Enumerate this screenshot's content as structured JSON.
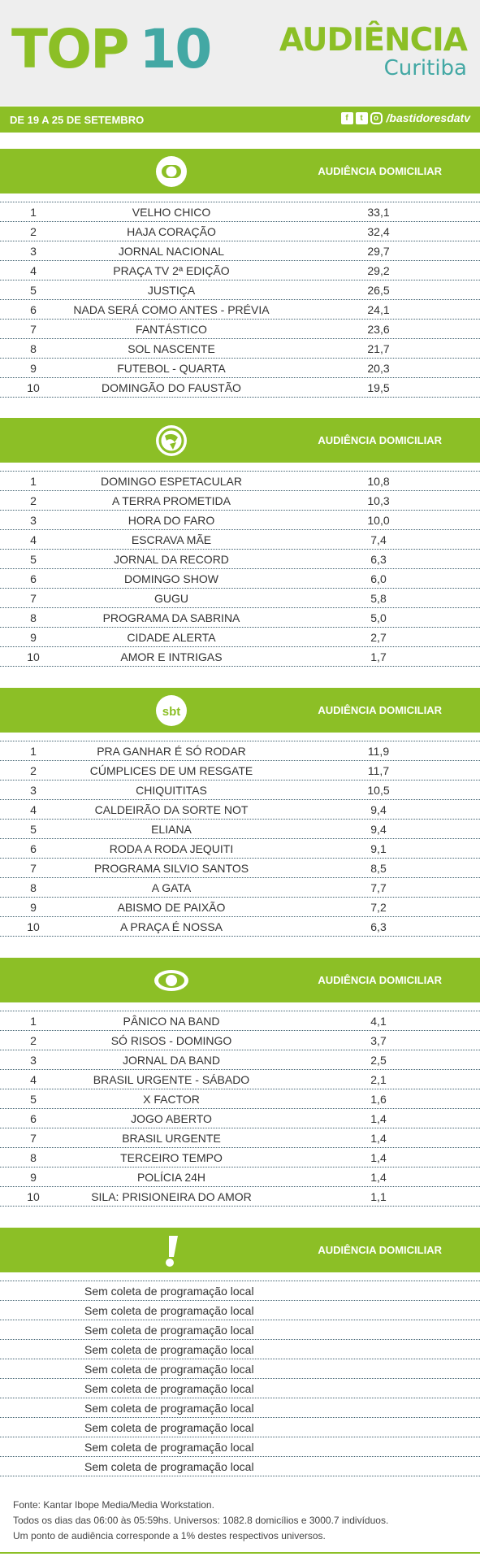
{
  "header": {
    "top": "TOP",
    "ten": "10",
    "audiencia": "AUDIÊNCIA",
    "city": "Curitiba"
  },
  "date_bar": {
    "period": "DE 19 A 25 DE SETEMBRO",
    "facebook": "f",
    "twitter": "t",
    "instagram": "o",
    "handle": "/bastidoresdatv"
  },
  "colors": {
    "accent_green": "#8cbf26",
    "accent_teal": "#43a8a4",
    "header_bg": "#eeeeee"
  },
  "sections": [
    {
      "icon": "globo-icon",
      "column_label": "AUDIÊNCIA DOMICILIAR",
      "rows": [
        {
          "rank": "1",
          "program": "VELHO CHICO",
          "value": "33,1"
        },
        {
          "rank": "2",
          "program": "HAJA CORAÇÃO",
          "value": "32,4"
        },
        {
          "rank": "3",
          "program": "JORNAL NACIONAL",
          "value": "29,7"
        },
        {
          "rank": "4",
          "program": "PRAÇA TV 2ª EDIÇÃO",
          "value": "29,2"
        },
        {
          "rank": "5",
          "program": "JUSTIÇA",
          "value": "26,5"
        },
        {
          "rank": "6",
          "program": "NADA SERÁ COMO ANTES - PRÉVIA",
          "value": "24,1"
        },
        {
          "rank": "7",
          "program": "FANTÁSTICO",
          "value": "23,6"
        },
        {
          "rank": "8",
          "program": "SOL NASCENTE",
          "value": "21,7"
        },
        {
          "rank": "9",
          "program": "FUTEBOL - QUARTA",
          "value": "20,3"
        },
        {
          "rank": "10",
          "program": "DOMINGÃO DO FAUSTÃO",
          "value": "19,5"
        }
      ]
    },
    {
      "icon": "record-icon",
      "column_label": "AUDIÊNCIA DOMICILIAR",
      "rows": [
        {
          "rank": "1",
          "program": "DOMINGO ESPETACULAR",
          "value": "10,8"
        },
        {
          "rank": "2",
          "program": "A TERRA PROMETIDA",
          "value": "10,3"
        },
        {
          "rank": "3",
          "program": "HORA DO FARO",
          "value": "10,0"
        },
        {
          "rank": "4",
          "program": "ESCRAVA MÃE",
          "value": "7,4"
        },
        {
          "rank": "5",
          "program": "JORNAL DA RECORD",
          "value": "6,3"
        },
        {
          "rank": "6",
          "program": "DOMINGO SHOW",
          "value": "6,0"
        },
        {
          "rank": "7",
          "program": "GUGU",
          "value": "5,8"
        },
        {
          "rank": "8",
          "program": "PROGRAMA DA SABRINA",
          "value": "5,0"
        },
        {
          "rank": "9",
          "program": "CIDADE ALERTA",
          "value": "2,7"
        },
        {
          "rank": "10",
          "program": "AMOR E INTRIGAS",
          "value": "1,7"
        }
      ]
    },
    {
      "icon": "sbt-icon",
      "icon_text": "sbt",
      "column_label": "AUDIÊNCIA DOMICILIAR",
      "rows": [
        {
          "rank": "1",
          "program": "PRA GANHAR É SÓ RODAR",
          "value": "11,9"
        },
        {
          "rank": "2",
          "program": "CÚMPLICES DE UM RESGATE",
          "value": "11,7"
        },
        {
          "rank": "3",
          "program": "CHIQUITITAS",
          "value": "10,5"
        },
        {
          "rank": "4",
          "program": "CALDEIRÃO DA SORTE NOT",
          "value": "9,4"
        },
        {
          "rank": "5",
          "program": "ELIANA",
          "value": "9,4"
        },
        {
          "rank": "6",
          "program": "RODA A RODA JEQUITI",
          "value": "9,1"
        },
        {
          "rank": "7",
          "program": "PROGRAMA SILVIO SANTOS",
          "value": "8,5"
        },
        {
          "rank": "8",
          "program": "A GATA",
          "value": "7,7"
        },
        {
          "rank": "9",
          "program": "ABISMO DE PAIXÃO",
          "value": "7,2"
        },
        {
          "rank": "10",
          "program": "A PRAÇA É NOSSA",
          "value": "6,3"
        }
      ]
    },
    {
      "icon": "band-eye-icon",
      "column_label": "AUDIÊNCIA DOMICILIAR",
      "rows": [
        {
          "rank": "1",
          "program": "PÂNICO NA BAND",
          "value": "4,1"
        },
        {
          "rank": "2",
          "program": "SÓ RISOS - DOMINGO",
          "value": "3,7"
        },
        {
          "rank": "3",
          "program": "JORNAL DA BAND",
          "value": "2,5"
        },
        {
          "rank": "4",
          "program": "BRASIL URGENTE - SÁBADO",
          "value": "2,1"
        },
        {
          "rank": "5",
          "program": "X FACTOR",
          "value": "1,6"
        },
        {
          "rank": "6",
          "program": "JOGO ABERTO",
          "value": "1,4"
        },
        {
          "rank": "7",
          "program": "BRASIL URGENTE",
          "value": "1,4"
        },
        {
          "rank": "8",
          "program": "TERCEIRO TEMPO",
          "value": "1,4"
        },
        {
          "rank": "9",
          "program": "POLÍCIA 24H",
          "value": "1,4"
        },
        {
          "rank": "10",
          "program": "SILA: PRISIONEIRA DO AMOR",
          "value": "1,1"
        }
      ]
    },
    {
      "icon": "redetv-exclamation-icon",
      "column_label": "AUDIÊNCIA DOMICILIAR",
      "rows": [
        {
          "note": "Sem coleta de programação local"
        },
        {
          "note": "Sem coleta de programação local"
        },
        {
          "note": "Sem coleta de programação local"
        },
        {
          "note": "Sem coleta de programação local"
        },
        {
          "note": "Sem coleta de programação local"
        },
        {
          "note": "Sem coleta de programação local"
        },
        {
          "note": "Sem coleta de programação local"
        },
        {
          "note": "Sem coleta de programação local"
        },
        {
          "note": "Sem coleta de programação local"
        },
        {
          "note": "Sem coleta de programação local"
        }
      ]
    }
  ],
  "footer": {
    "line1": "Fonte: Kantar Ibope Media/Media Workstation.",
    "line2": "Todos os dias das 06:00 às 05:59hs. Universos: 1082.8 domicílios e 3000.7 indivíduos.",
    "line3": "Um ponto de audiência corresponde a 1% destes respectivos universos."
  }
}
